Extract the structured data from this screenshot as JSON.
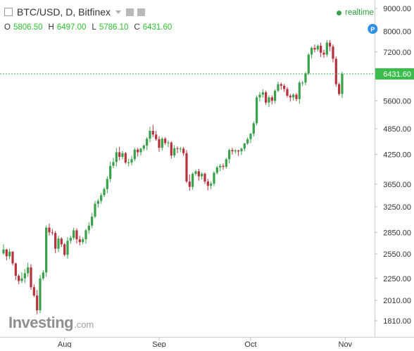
{
  "header": {
    "instrument": "BTC/USD, D, Bitfinex",
    "realtime_label": "realtime"
  },
  "ohlc": [
    {
      "label": "O",
      "value": "5806.50"
    },
    {
      "label": "H",
      "value": "6497.00"
    },
    {
      "label": "L",
      "value": "5786.10"
    },
    {
      "label": "C",
      "value": "6431.60"
    }
  ],
  "logo": {
    "main": "Investing",
    "sub": ".com"
  },
  "colors": {
    "up": "#3aa14b",
    "down": "#b8323d",
    "price_line": "#30b24a",
    "marker": "#2e8fe3"
  },
  "chart_data": {
    "type": "candlestick",
    "title": "BTC/USD, D, Bitfinex",
    "price_scale": "log",
    "y_ticks": [
      9000,
      8000,
      7200,
      6431.6,
      5600,
      4850,
      4250,
      3650,
      3250,
      2850,
      2550,
      2250,
      2010,
      1810
    ],
    "y_tick_labels": [
      "9000.00",
      "8000.00",
      "7200.00",
      "6431.60",
      "5600.00",
      "4850.00",
      "4250.00",
      "3650.00",
      "3250.00",
      "2850.00",
      "2550.00",
      "2250.00",
      "2010.00",
      "1810.00"
    ],
    "x_ticks": [
      {
        "index": 20,
        "label": "Aug"
      },
      {
        "index": 51,
        "label": "Sep"
      },
      {
        "index": 81,
        "label": "Oct"
      },
      {
        "index": 112,
        "label": "Nov"
      }
    ],
    "last_price": 6431.6,
    "last_price_label": "6431.60",
    "marker": {
      "index": 121,
      "label": "P"
    },
    "closes": [
      2610,
      2520,
      2580,
      2430,
      2280,
      2220,
      2250,
      2310,
      2380,
      2150,
      2060,
      1910,
      2250,
      2320,
      2920,
      2850,
      2840,
      2620,
      2760,
      2680,
      2540,
      2730,
      2770,
      2880,
      2750,
      2710,
      2750,
      2880,
      2950,
      3090,
      3300,
      3350,
      3450,
      3560,
      3750,
      4010,
      4090,
      4300,
      4200,
      4280,
      4080,
      4080,
      4150,
      4360,
      4300,
      4380,
      4450,
      4610,
      4800,
      4710,
      4600,
      4400,
      4610,
      4510,
      4520,
      4230,
      4390,
      4380,
      4380,
      4280,
      3700,
      3600,
      3850,
      3900,
      3800,
      3850,
      3700,
      3620,
      3660,
      3870,
      3980,
      4010,
      3990,
      4150,
      4350,
      4320,
      4340,
      4320,
      4380,
      4500,
      4600,
      4730,
      4990,
      5700,
      5780,
      5850,
      5550,
      5700,
      5600,
      5900,
      6100,
      6050,
      5950,
      5750,
      5700,
      5780,
      5650,
      6150,
      6150,
      6450,
      7100,
      7350,
      7290,
      7430,
      7170,
      7100,
      7550,
      7400,
      6950,
      6100,
      5800,
      6431.6
    ],
    "highs": [
      2680,
      2620,
      2620,
      2590,
      2440,
      2300,
      2320,
      2360,
      2440,
      2420,
      2180,
      2120,
      2290,
      2350,
      2950,
      2980,
      2900,
      2870,
      2800,
      2780,
      2700,
      2780,
      2800,
      2920,
      2910,
      2800,
      2780,
      2900,
      3000,
      3150,
      3350,
      3380,
      3490,
      3590,
      3800,
      4100,
      4180,
      4400,
      4420,
      4330,
      4310,
      4160,
      4220,
      4400,
      4400,
      4400,
      4480,
      4650,
      4900,
      4950,
      4800,
      4670,
      4650,
      4650,
      4570,
      4550,
      4460,
      4430,
      4420,
      4420,
      4350,
      3840,
      3880,
      3930,
      3950,
      3880,
      3880,
      3750,
      3700,
      3900,
      4010,
      4050,
      4060,
      4180,
      4380,
      4400,
      4370,
      4360,
      4400,
      4510,
      4640,
      4750,
      5040,
      5760,
      5860,
      5940,
      5900,
      5760,
      5760,
      5940,
      6180,
      6150,
      6110,
      6010,
      5800,
      5820,
      5830,
      6200,
      6200,
      6490,
      7150,
      7400,
      7480,
      7480,
      7550,
      7280,
      7650,
      7650,
      7480,
      7030,
      6150,
      6497
    ]
  }
}
